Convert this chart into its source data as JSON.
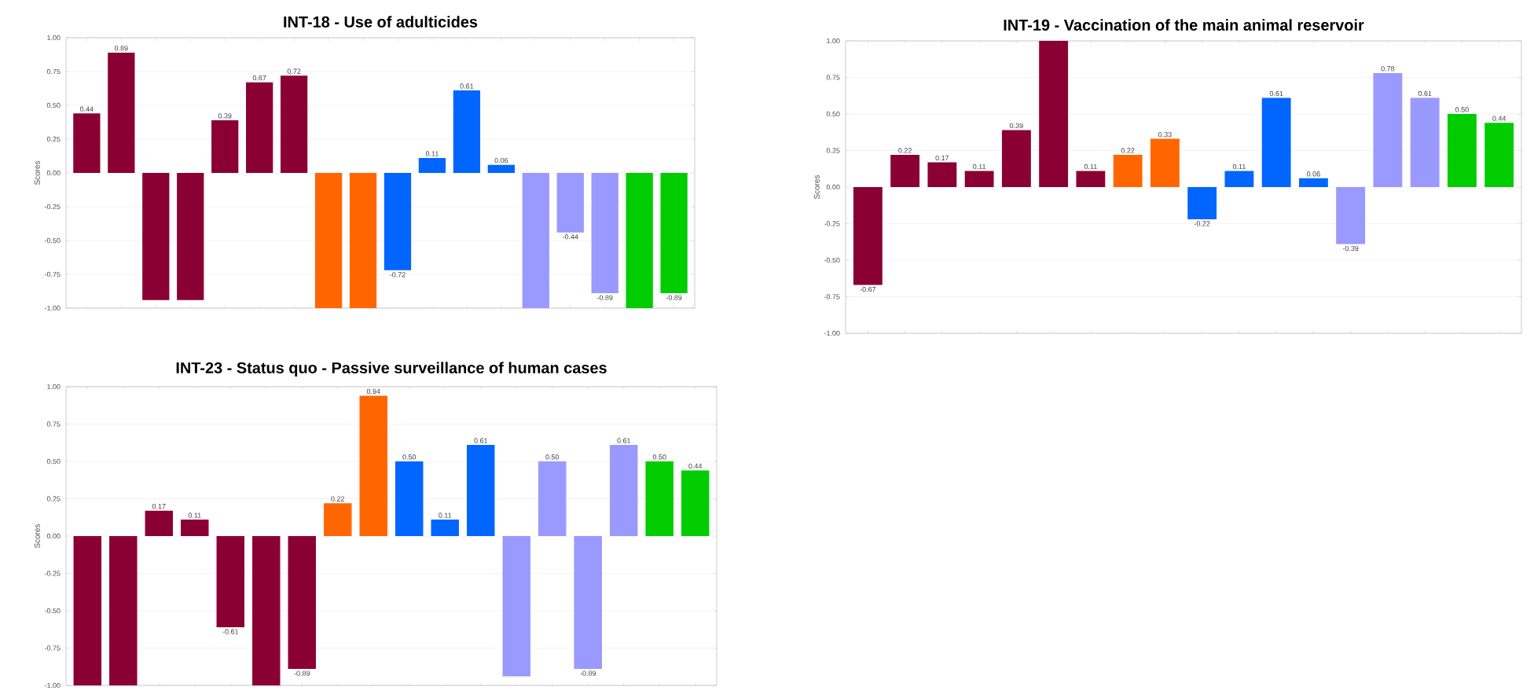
{
  "chart_data": [
    {
      "type": "bar",
      "title": "INT-18 - Use of adulticides",
      "ylabel": "Scores",
      "categories": [
        null,
        null,
        null,
        null,
        null,
        null,
        null,
        null,
        null,
        null,
        null,
        null,
        null,
        null,
        null,
        null,
        null,
        null
      ],
      "values": [
        0.44,
        0.89,
        -0.94,
        -0.94,
        0.39,
        0.67,
        0.72,
        -1,
        -1,
        -0.72,
        0.11,
        0.61,
        0.06,
        -1,
        -0.44,
        -0.89,
        -1,
        -0.89
      ],
      "value_labels": [
        "0.44",
        "0.89",
        null,
        null,
        "0.39",
        "0.67",
        "0.72",
        null,
        null,
        "-0.72",
        "0.11",
        "0.61",
        "0.06",
        null,
        "-0.44",
        "-0.89",
        null,
        "-0.89"
      ],
      "colors": [
        "#8b0033",
        "#8b0033",
        "#8b0033",
        "#8b0033",
        "#8b0033",
        "#8b0033",
        "#8b0033",
        "#ff6600",
        "#ff6600",
        "#0066ff",
        "#0066ff",
        "#0066ff",
        "#0066ff",
        "#9999ff",
        "#9999ff",
        "#9999ff",
        "#00cc00",
        "#00cc00"
      ],
      "ylim": [
        -1,
        1
      ],
      "yticks": [
        {
          "value": -1,
          "label": "-1.00"
        },
        {
          "value": -0.75,
          "label": "-0.75"
        },
        {
          "value": -0.5,
          "label": "-0.50"
        },
        {
          "value": -0.25,
          "label": "-0.25"
        },
        {
          "value": 0,
          "label": "0.00"
        },
        {
          "value": 0.25,
          "label": "0.25"
        },
        {
          "value": 0.5,
          "label": "0.50"
        },
        {
          "value": 0.75,
          "label": "0.75"
        },
        {
          "value": 1,
          "label": "1.00"
        }
      ],
      "grid": "y"
    },
    {
      "type": "bar",
      "title": "INT-19 - Vaccination of the main animal reservoir",
      "ylabel": "Scores",
      "categories": [
        null,
        null,
        null,
        null,
        null,
        null,
        null,
        null,
        null,
        null,
        null,
        null,
        null,
        null,
        null,
        null,
        null,
        null
      ],
      "values": [
        -0.67,
        0.22,
        0.17,
        0.11,
        0.39,
        1,
        0.11,
        0.22,
        0.33,
        -0.22,
        0.11,
        0.61,
        0.06,
        -0.39,
        0.78,
        0.61,
        0.5,
        0.44
      ],
      "value_labels": [
        "-0.67",
        "0.22",
        "0.17",
        "0.11",
        "0.39",
        null,
        "0.11",
        "0.22",
        "0.33",
        "-0.22",
        "0.11",
        "0.61",
        "0.06",
        "-0.39",
        "0.78",
        "0.61",
        "0.50",
        "0.44"
      ],
      "colors": [
        "#8b0033",
        "#8b0033",
        "#8b0033",
        "#8b0033",
        "#8b0033",
        "#8b0033",
        "#8b0033",
        "#ff6600",
        "#ff6600",
        "#0066ff",
        "#0066ff",
        "#0066ff",
        "#0066ff",
        "#9999ff",
        "#9999ff",
        "#9999ff",
        "#00cc00",
        "#00cc00"
      ],
      "ylim": [
        -1,
        1
      ],
      "yticks": [
        {
          "value": -1,
          "label": "-1.00"
        },
        {
          "value": -0.75,
          "label": "-0.75"
        },
        {
          "value": -0.5,
          "label": "-0.50"
        },
        {
          "value": -0.25,
          "label": "-0.25"
        },
        {
          "value": 0,
          "label": "0.00"
        },
        {
          "value": 0.25,
          "label": "0.25"
        },
        {
          "value": 0.5,
          "label": "0.50"
        },
        {
          "value": 0.75,
          "label": "0.75"
        },
        {
          "value": 1,
          "label": "1.00"
        }
      ],
      "grid": "y"
    },
    {
      "type": "bar",
      "title": "INT-23 - Status quo - Passive surveillance of human cases",
      "ylabel": "Scores",
      "categories": [
        null,
        null,
        null,
        null,
        null,
        null,
        null,
        null,
        null,
        null,
        null,
        null,
        null,
        null,
        null,
        null,
        null,
        null
      ],
      "values": [
        -1,
        -1,
        0.17,
        0.11,
        -0.61,
        -1,
        -0.89,
        0.22,
        0.94,
        0.5,
        0.11,
        0.61,
        -0.94,
        0.5,
        -0.89,
        0.61,
        0.5,
        0.44
      ],
      "value_labels": [
        null,
        null,
        "0.17",
        "0.11",
        "-0.61",
        null,
        "-0.89",
        "0.22",
        "0.94",
        "0.50",
        "0.11",
        "0.61",
        null,
        "0.50",
        "-0.89",
        "0.61",
        "0.50",
        "0.44"
      ],
      "colors": [
        "#8b0033",
        "#8b0033",
        "#8b0033",
        "#8b0033",
        "#8b0033",
        "#8b0033",
        "#8b0033",
        "#ff6600",
        "#ff6600",
        "#0066ff",
        "#0066ff",
        "#0066ff",
        "#9999ff",
        "#9999ff",
        "#9999ff",
        "#9999ff",
        "#00cc00",
        "#00cc00"
      ],
      "ylim": [
        -1,
        1
      ],
      "yticks": [
        {
          "value": -1,
          "label": "-1.00"
        },
        {
          "value": -0.75,
          "label": "-0.75"
        },
        {
          "value": -0.5,
          "label": "-0.50"
        },
        {
          "value": -0.25,
          "label": "-0.25"
        },
        {
          "value": 0,
          "label": "0.00"
        },
        {
          "value": 0.25,
          "label": "0.25"
        },
        {
          "value": 0.5,
          "label": "0.50"
        },
        {
          "value": 0.75,
          "label": "0.75"
        },
        {
          "value": 1,
          "label": "1.00"
        }
      ],
      "grid": "y"
    }
  ]
}
